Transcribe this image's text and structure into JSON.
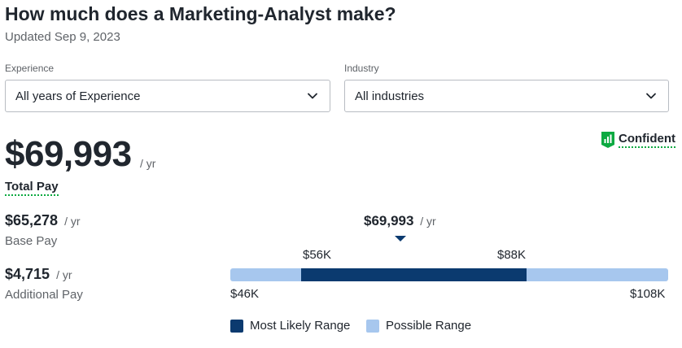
{
  "header": {
    "title": "How much does a Marketing-Analyst make?",
    "updated": "Updated Sep 9, 2023"
  },
  "filters": {
    "experience": {
      "label": "Experience",
      "value": "All years of Experience"
    },
    "industry": {
      "label": "Industry",
      "value": "All industries"
    }
  },
  "confidence": {
    "label": "Confident",
    "icon": "bar-chart-badge-icon",
    "color": "#0caa41"
  },
  "total_pay": {
    "amount": "$69,993",
    "unit": "/ yr",
    "label": "Total Pay"
  },
  "base_pay": {
    "amount": "$65,278",
    "unit": "/ yr",
    "label": "Base Pay"
  },
  "additional_pay": {
    "amount": "$4,715",
    "unit": "/ yr",
    "label": "Additional Pay"
  },
  "range": {
    "median_label": "$69,993",
    "median_unit": "/ yr",
    "likely_low_label": "$56K",
    "likely_high_label": "$88K",
    "possible_low_label": "$46K",
    "possible_high_label": "$108K",
    "possible_low": 46,
    "possible_high": 108,
    "likely_low": 56,
    "likely_high": 88,
    "median": 69.993,
    "colors": {
      "likely": "#0b3a6f",
      "possible": "#a7c7ee"
    }
  },
  "legend": {
    "likely": "Most Likely Range",
    "possible": "Possible Range"
  }
}
